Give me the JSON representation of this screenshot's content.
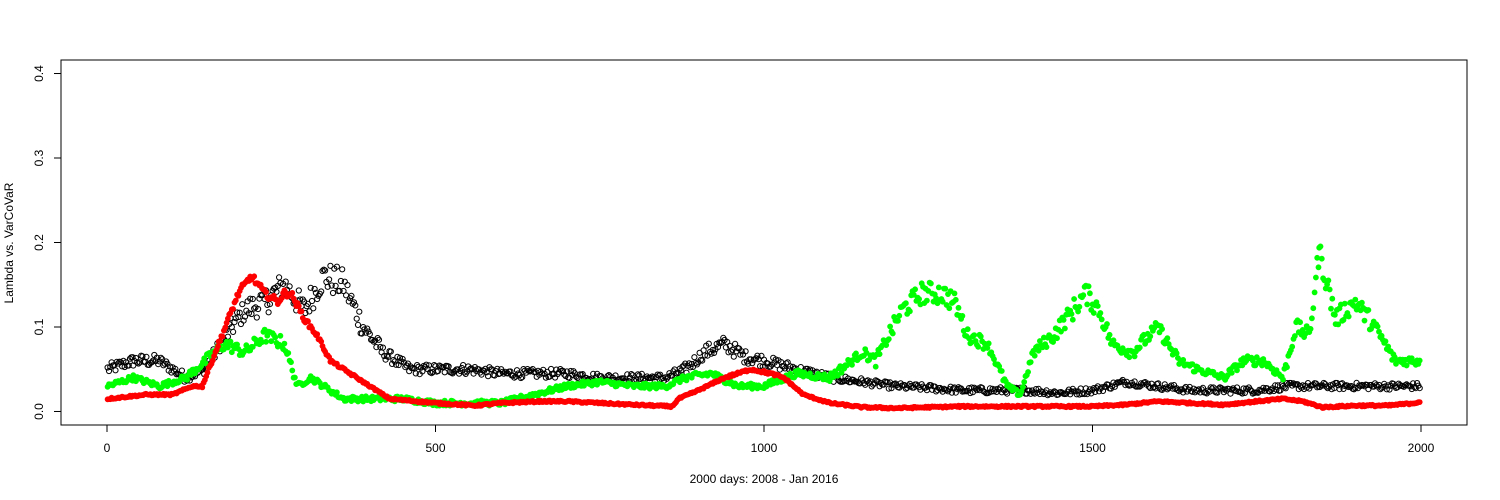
{
  "chart_data": {
    "type": "scatter",
    "title": "",
    "xlabel": "2000 days: 2008 - Jan 2016",
    "ylabel": "Lambda vs. VarCoVaR",
    "xlim": [
      -70,
      2070
    ],
    "ylim": [
      -0.016,
      0.416
    ],
    "x_ticks": [
      0,
      500,
      1000,
      1500,
      2000
    ],
    "x_tick_labels": [
      "0",
      "500",
      "1000",
      "1500",
      "2000"
    ],
    "y_ticks": [
      0.0,
      0.1,
      0.2,
      0.3,
      0.4
    ],
    "y_tick_labels": [
      "0.0",
      "0.1",
      "0.2",
      "0.3",
      "0.4"
    ],
    "grid": false,
    "legend": "none",
    "series": [
      {
        "color": "#000000",
        "marker": "open-circle",
        "x": [
          1,
          40,
          80,
          120,
          150,
          180,
          210,
          240,
          270,
          300,
          330,
          360,
          390,
          420,
          460,
          500,
          550,
          600,
          650,
          700,
          750,
          800,
          850,
          880,
          910,
          940,
          970,
          1000,
          1050,
          1100,
          1150,
          1200,
          1250,
          1300,
          1350,
          1400,
          1450,
          1500,
          1550,
          1600,
          1650,
          1700,
          1750,
          1800,
          1850,
          1900,
          1950,
          2000
        ],
        "values": [
          0.05,
          0.06,
          0.06,
          0.04,
          0.05,
          0.09,
          0.12,
          0.13,
          0.15,
          0.12,
          0.16,
          0.15,
          0.1,
          0.07,
          0.05,
          0.05,
          0.05,
          0.045,
          0.045,
          0.045,
          0.04,
          0.04,
          0.04,
          0.05,
          0.07,
          0.08,
          0.065,
          0.06,
          0.05,
          0.04,
          0.035,
          0.03,
          0.028,
          0.025,
          0.025,
          0.025,
          0.022,
          0.025,
          0.035,
          0.03,
          0.025,
          0.025,
          0.025,
          0.03,
          0.03,
          0.03,
          0.03,
          0.03
        ]
      },
      {
        "color": "#00ff00",
        "marker": "filled-circle",
        "x": [
          1,
          40,
          80,
          120,
          150,
          180,
          210,
          240,
          270,
          290,
          310,
          330,
          360,
          400,
          450,
          500,
          550,
          600,
          650,
          700,
          750,
          800,
          850,
          880,
          920,
          960,
          1000,
          1050,
          1100,
          1150,
          1170,
          1190,
          1210,
          1240,
          1270,
          1290,
          1310,
          1340,
          1370,
          1390,
          1410,
          1440,
          1470,
          1490,
          1510,
          1530,
          1560,
          1600,
          1630,
          1660,
          1700,
          1730,
          1760,
          1790,
          1810,
          1830,
          1845,
          1870,
          1900,
          1930,
          1960,
          2000
        ],
        "values": [
          0.03,
          0.04,
          0.03,
          0.04,
          0.06,
          0.08,
          0.07,
          0.09,
          0.08,
          0.03,
          0.04,
          0.03,
          0.015,
          0.015,
          0.015,
          0.01,
          0.01,
          0.01,
          0.02,
          0.03,
          0.035,
          0.03,
          0.03,
          0.04,
          0.045,
          0.03,
          0.03,
          0.045,
          0.04,
          0.07,
          0.06,
          0.09,
          0.12,
          0.14,
          0.14,
          0.13,
          0.09,
          0.08,
          0.03,
          0.02,
          0.07,
          0.09,
          0.12,
          0.14,
          0.12,
          0.08,
          0.07,
          0.1,
          0.06,
          0.05,
          0.04,
          0.06,
          0.06,
          0.04,
          0.1,
          0.09,
          0.19,
          0.11,
          0.13,
          0.1,
          0.06,
          0.06
        ]
      },
      {
        "color": "#ff0000",
        "marker": "filled-circle",
        "x": [
          1,
          60,
          100,
          130,
          145,
          170,
          200,
          220,
          240,
          260,
          270,
          280,
          300,
          320,
          340,
          380,
          400,
          430,
          500,
          560,
          600,
          660,
          700,
          750,
          800,
          860,
          870,
          900,
          940,
          980,
          1010,
          1030,
          1060,
          1100,
          1150,
          1200,
          1250,
          1300,
          1400,
          1500,
          1550,
          1600,
          1650,
          1700,
          1750,
          1790,
          1820,
          1850,
          1900,
          1950,
          1990,
          2000
        ],
        "values": [
          0.015,
          0.02,
          0.02,
          0.03,
          0.03,
          0.08,
          0.14,
          0.16,
          0.14,
          0.13,
          0.14,
          0.14,
          0.11,
          0.09,
          0.06,
          0.04,
          0.03,
          0.015,
          0.01,
          0.007,
          0.01,
          0.012,
          0.012,
          0.01,
          0.008,
          0.006,
          0.015,
          0.025,
          0.04,
          0.05,
          0.045,
          0.04,
          0.02,
          0.01,
          0.005,
          0.004,
          0.005,
          0.006,
          0.006,
          0.006,
          0.008,
          0.012,
          0.01,
          0.008,
          0.012,
          0.015,
          0.012,
          0.005,
          0.007,
          0.007,
          0.01,
          0.012
        ]
      }
    ]
  }
}
